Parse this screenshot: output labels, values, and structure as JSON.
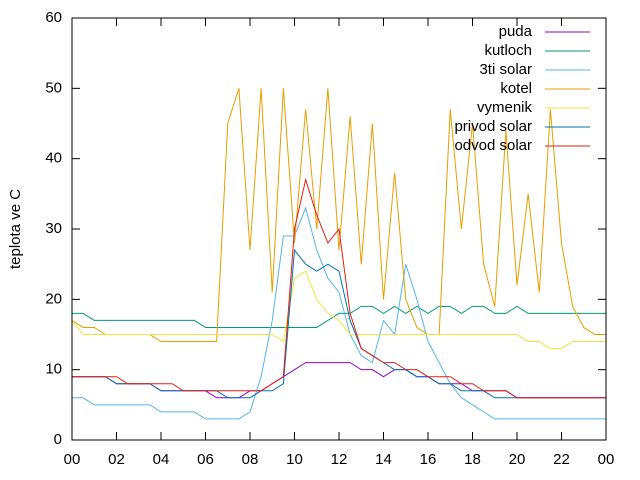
{
  "chart_data": {
    "type": "line",
    "ylabel": "teplota ve C",
    "x": [
      0,
      0.5,
      1,
      1.5,
      2,
      2.5,
      3,
      3.5,
      4,
      4.5,
      5,
      5.5,
      6,
      6.5,
      7,
      7.5,
      8,
      8.5,
      9,
      9.5,
      10,
      10.5,
      11,
      11.5,
      12,
      12.5,
      13,
      13.5,
      14,
      14.5,
      15,
      15.5,
      16,
      16.5,
      17,
      17.5,
      18,
      18.5,
      19,
      19.5,
      20,
      20.5,
      21,
      21.5,
      22,
      22.5,
      23,
      23.5,
      24
    ],
    "xlim": [
      0,
      24
    ],
    "xticks": [
      {
        "value": 0,
        "label": "00"
      },
      {
        "value": 2,
        "label": "02"
      },
      {
        "value": 4,
        "label": "04"
      },
      {
        "value": 6,
        "label": "06"
      },
      {
        "value": 8,
        "label": "08"
      },
      10,
      12,
      14,
      16,
      18,
      20,
      22,
      {
        "value": 24,
        "label": "00"
      }
    ],
    "ylim": [
      0,
      60
    ],
    "yticks": [
      0,
      10,
      20,
      30,
      40,
      50,
      60
    ],
    "grid": false,
    "legend": "top right",
    "series": [
      {
        "name": "puda",
        "color": "#9400d3",
        "values": [
          9,
          9,
          9,
          9,
          8,
          8,
          8,
          8,
          7,
          7,
          7,
          7,
          7,
          6,
          6,
          6,
          7,
          7,
          8,
          9,
          10,
          11,
          11,
          11,
          11,
          11,
          10,
          10,
          9,
          10,
          10,
          9,
          9,
          8,
          8,
          8,
          7,
          7,
          7,
          7,
          6,
          6,
          6,
          6,
          6,
          6,
          6,
          6,
          6
        ]
      },
      {
        "name": "kutloch",
        "color": "#009e73",
        "values": [
          18,
          18,
          17,
          17,
          17,
          17,
          17,
          17,
          17,
          17,
          17,
          17,
          16,
          16,
          16,
          16,
          16,
          16,
          16,
          16,
          16,
          16,
          16,
          17,
          18,
          18,
          19,
          19,
          18,
          19,
          18,
          19,
          18,
          19,
          19,
          18,
          19,
          19,
          18,
          18,
          19,
          18,
          18,
          18,
          18,
          18,
          18,
          18,
          18
        ]
      },
      {
        "name": "3ti solar",
        "color": "#56b4e9",
        "values": [
          6,
          6,
          5,
          5,
          5,
          5,
          5,
          5,
          4,
          4,
          4,
          4,
          3,
          3,
          3,
          3,
          4,
          9,
          17,
          29,
          29,
          33,
          27,
          23,
          21,
          15,
          12,
          11,
          17,
          15,
          25,
          20,
          14,
          11,
          8,
          6,
          5,
          4,
          3,
          3,
          3,
          3,
          3,
          3,
          3,
          3,
          3,
          3,
          3
        ]
      },
      {
        "name": "kotel",
        "color": "#e69f00",
        "values": [
          17,
          16,
          16,
          15,
          15,
          15,
          15,
          15,
          14,
          14,
          14,
          14,
          14,
          14,
          45,
          50,
          27,
          50,
          21,
          50,
          28,
          47,
          30,
          50,
          27,
          46,
          25,
          45,
          20,
          38,
          20,
          16,
          15,
          15,
          47,
          30,
          45,
          25,
          19,
          44,
          22,
          35,
          21,
          47,
          28,
          19,
          16,
          15,
          15
        ]
      },
      {
        "name": "vymenik",
        "color": "#f0e442",
        "values": [
          17,
          15,
          15,
          15,
          15,
          15,
          15,
          15,
          15,
          15,
          15,
          15,
          15,
          15,
          15,
          15,
          15,
          15,
          15,
          14,
          23,
          24,
          20,
          18,
          17,
          15,
          15,
          15,
          15,
          15,
          15,
          15,
          15,
          15,
          15,
          15,
          15,
          15,
          15,
          15,
          15,
          14,
          14,
          13,
          13,
          14,
          14,
          14,
          14
        ]
      },
      {
        "name": "privod solar",
        "color": "#0072b2",
        "values": [
          9,
          9,
          9,
          9,
          8,
          8,
          8,
          8,
          7,
          7,
          7,
          7,
          7,
          7,
          6,
          6,
          6,
          7,
          7,
          8,
          27,
          25,
          24,
          25,
          24,
          17,
          13,
          12,
          11,
          10,
          10,
          9,
          9,
          8,
          8,
          7,
          7,
          7,
          6,
          6,
          6,
          6,
          6,
          6,
          6,
          6,
          6,
          6,
          6
        ]
      },
      {
        "name": "odvod solar",
        "color": "#e51e10",
        "values": [
          9,
          9,
          9,
          9,
          9,
          8,
          8,
          8,
          8,
          8,
          7,
          7,
          7,
          7,
          7,
          7,
          7,
          7,
          8,
          9,
          30,
          37,
          32,
          28,
          30,
          18,
          13,
          12,
          11,
          11,
          10,
          10,
          9,
          9,
          9,
          8,
          8,
          7,
          7,
          7,
          6,
          6,
          6,
          6,
          6,
          6,
          6,
          6,
          6
        ]
      }
    ]
  }
}
